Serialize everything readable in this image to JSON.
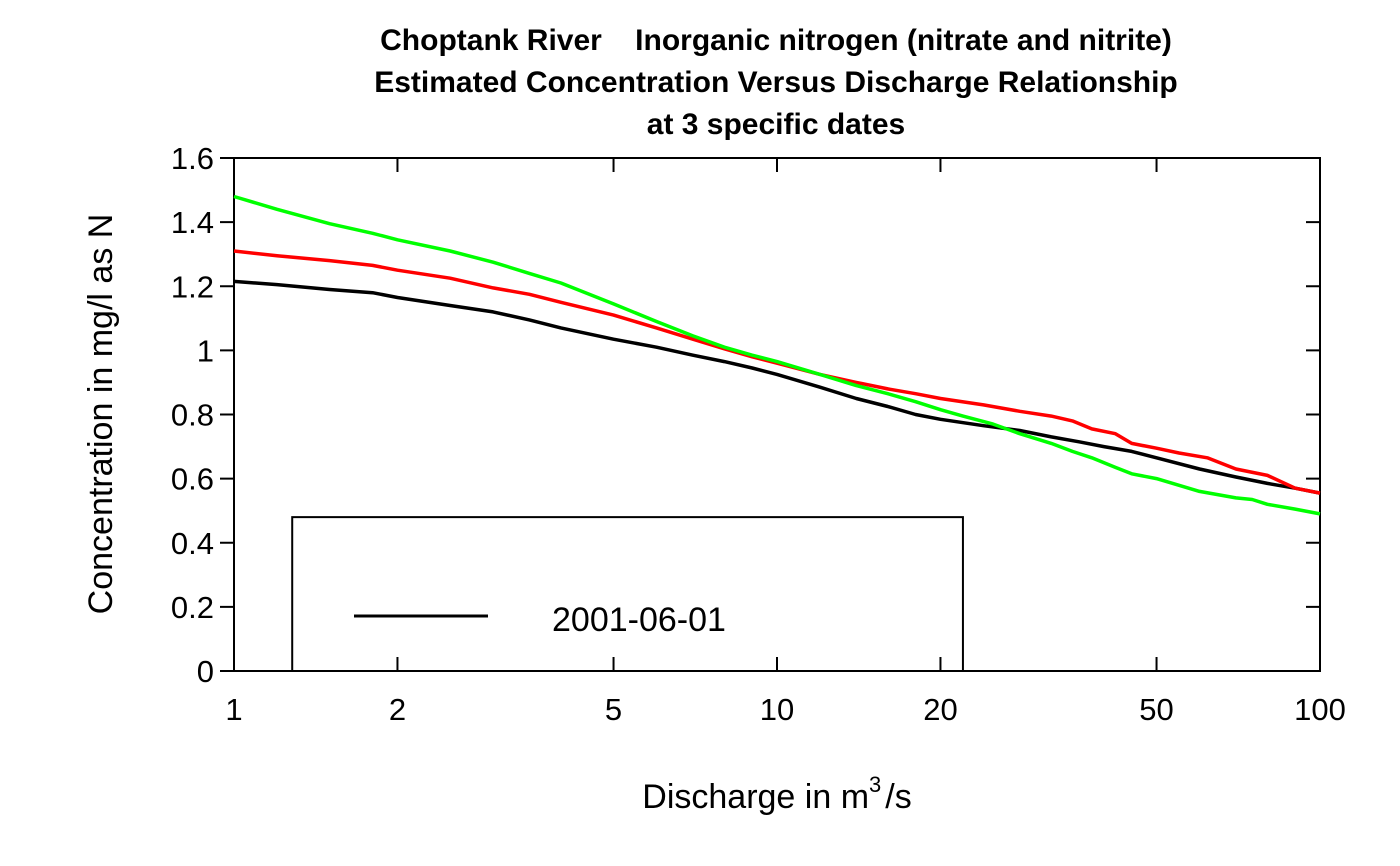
{
  "chart_data": {
    "type": "line",
    "title_lines": [
      "Choptank River    Inorganic nitrogen (nitrate and nitrite)",
      "Estimated Concentration Versus Discharge Relationship",
      "at 3 specific dates"
    ],
    "xlabel_prefix": "Discharge in m",
    "xlabel_superscript": "3",
    "xlabel_suffix": "/s",
    "ylabel": "Concentration in mg/l as N",
    "x_scale": "log",
    "xlim": [
      1,
      100
    ],
    "ylim": [
      0,
      1.6
    ],
    "x_ticks": [
      1,
      2,
      5,
      10,
      20,
      50,
      100
    ],
    "x_tick_labels": [
      "1",
      "2",
      "5",
      "10",
      "20",
      "50",
      "100"
    ],
    "y_ticks": [
      0,
      0.2,
      0.4,
      0.6,
      0.8,
      1,
      1.2,
      1.4,
      1.6
    ],
    "y_tick_labels": [
      "0",
      "0.2",
      "0.4",
      "0.6",
      "0.8",
      "1",
      "1.2",
      "1.4",
      "1.6"
    ],
    "grid": false,
    "legend": {
      "placement": "bottom-left",
      "entries": [
        {
          "label": "2001-06-01",
          "color": "#000000"
        }
      ],
      "box_x_range": [
        1.28,
        22
      ],
      "box_y_top": 0.48
    },
    "series": [
      {
        "color": "#000000",
        "x": [
          1,
          1.2,
          1.5,
          1.8,
          2,
          2.5,
          3,
          3.5,
          4,
          5,
          6,
          7,
          8,
          9,
          10,
          12,
          14,
          16,
          18,
          20,
          24,
          28,
          32,
          36,
          40,
          45,
          50,
          60,
          70,
          80,
          90,
          100
        ],
        "y": [
          1.215,
          1.205,
          1.19,
          1.18,
          1.165,
          1.14,
          1.12,
          1.095,
          1.07,
          1.035,
          1.01,
          0.985,
          0.965,
          0.945,
          0.925,
          0.885,
          0.85,
          0.825,
          0.8,
          0.785,
          0.765,
          0.75,
          0.73,
          0.715,
          0.7,
          0.685,
          0.665,
          0.63,
          0.605,
          0.585,
          0.57,
          0.555
        ]
      },
      {
        "color": "#ff0000",
        "x": [
          1,
          1.2,
          1.5,
          1.8,
          2,
          2.5,
          3,
          3.5,
          4,
          5,
          6,
          7,
          8,
          9,
          10,
          12,
          14,
          16,
          18,
          20,
          24,
          28,
          32,
          35,
          38,
          42,
          45,
          50,
          55,
          62,
          70,
          80,
          90,
          100
        ],
        "y": [
          1.31,
          1.295,
          1.28,
          1.265,
          1.25,
          1.225,
          1.195,
          1.175,
          1.15,
          1.11,
          1.07,
          1.035,
          1.005,
          0.98,
          0.96,
          0.925,
          0.9,
          0.88,
          0.865,
          0.85,
          0.83,
          0.81,
          0.795,
          0.78,
          0.755,
          0.74,
          0.71,
          0.695,
          0.68,
          0.665,
          0.63,
          0.61,
          0.57,
          0.555
        ]
      },
      {
        "color": "#00ff00",
        "x": [
          1,
          1.2,
          1.5,
          1.8,
          2,
          2.5,
          3,
          3.5,
          4,
          5,
          6,
          7,
          8,
          9,
          10,
          12,
          14,
          16,
          18,
          20,
          22,
          25,
          28,
          32,
          35,
          38,
          42,
          45,
          50,
          60,
          70,
          75,
          80,
          90,
          100
        ],
        "y": [
          1.48,
          1.44,
          1.395,
          1.365,
          1.345,
          1.31,
          1.275,
          1.24,
          1.21,
          1.145,
          1.09,
          1.045,
          1.01,
          0.985,
          0.965,
          0.925,
          0.89,
          0.865,
          0.84,
          0.815,
          0.795,
          0.77,
          0.74,
          0.71,
          0.685,
          0.665,
          0.635,
          0.615,
          0.6,
          0.56,
          0.54,
          0.535,
          0.52,
          0.505,
          0.49
        ]
      }
    ]
  }
}
